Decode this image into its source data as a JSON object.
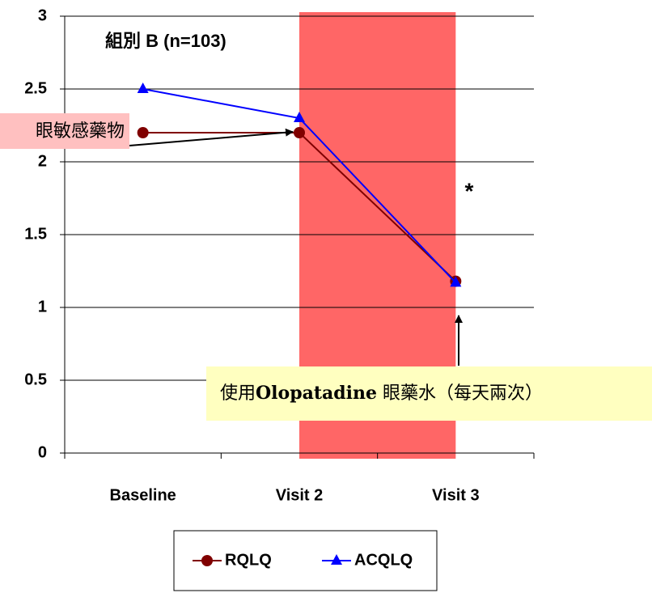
{
  "chart_data": {
    "type": "line",
    "title": "組別 B (n=103)",
    "categories": [
      "Baseline",
      "Visit 2",
      "Visit 3"
    ],
    "series": [
      {
        "name": "RQLQ",
        "color": "#800000",
        "marker": "circle",
        "values": [
          2.2,
          2.2,
          1.18
        ]
      },
      {
        "name": "ACQLQ",
        "color": "#0000ff",
        "marker": "triangle",
        "values": [
          2.5,
          2.3,
          1.17
        ]
      }
    ],
    "ylim": [
      0,
      3
    ],
    "yticks": [
      0,
      0.5,
      1,
      1.5,
      2,
      2.5,
      3
    ],
    "grid": true,
    "highlight_color": "#ff6666",
    "annotations": {
      "significance": "*",
      "drug_note": "眼敏感藥物",
      "treatment_note": [
        "使用",
        "Olopatadine",
        " 眼藥水（每天兩次）"
      ]
    },
    "legend": "bottom"
  }
}
